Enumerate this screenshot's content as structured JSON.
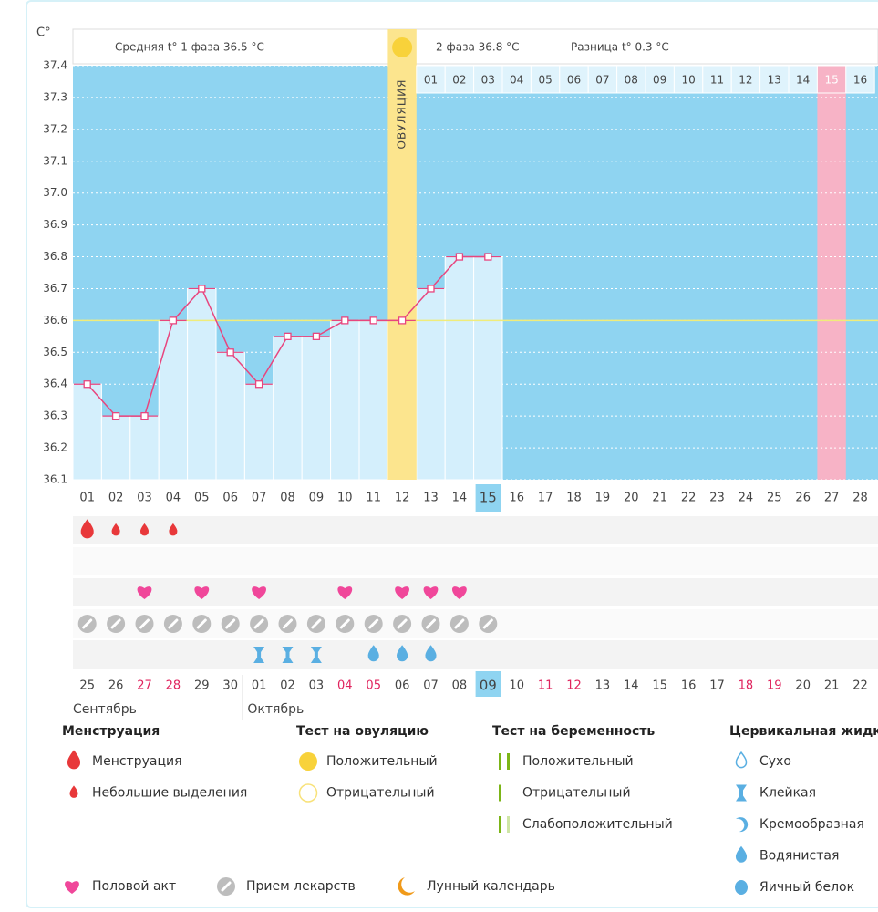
{
  "chart_data": {
    "type": "line",
    "y_unit": "C°",
    "header": {
      "phase1": "Средняя t° 1 фаза 36.5 °C",
      "phase2": "2 фаза 36.8 °C",
      "difference": "Разница t° 0.3 °C"
    },
    "ylim": [
      36.1,
      37.4
    ],
    "yticks": [
      36.1,
      36.2,
      36.3,
      36.4,
      36.5,
      36.6,
      36.7,
      36.8,
      36.9,
      {
        "value": 37,
        "label": "37.0"
      },
      37.1,
      37.2,
      37.3,
      37.4
    ],
    "grid": true,
    "categories": [
      "01",
      "02",
      "03",
      "04",
      "05",
      "06",
      "07",
      "08",
      "09",
      "10",
      "11",
      "12",
      "13",
      "14",
      "15",
      "16",
      "17",
      "18",
      "19",
      "20",
      "21",
      "22",
      "23",
      "24",
      "25",
      "26",
      "27",
      "28"
    ],
    "values": [
      36.4,
      36.3,
      36.3,
      36.6,
      36.7,
      36.5,
      36.4,
      36.55,
      36.55,
      36.6,
      36.6,
      36.6,
      36.7,
      36.8,
      36.8,
      null,
      null,
      null,
      null,
      null,
      null,
      null,
      null,
      null,
      null,
      null,
      null,
      null
    ],
    "line_color": "#e8457e",
    "bar_color": "#d4effc",
    "background_color": "#8fd4f1",
    "coverline": 36.6,
    "coverline_color": "#f0ec7a",
    "ovulation": {
      "day": "12",
      "label": "ОВУЛЯЦИЯ",
      "color": "#fce58e"
    },
    "phase2_days": [
      "01",
      "02",
      "03",
      "04",
      "05",
      "06",
      "07",
      "08",
      "09",
      "10",
      "11",
      "12",
      "13",
      "14",
      "15",
      "16"
    ],
    "phase2_highlight": "15",
    "phase2_highlight_color": "#f7b3c6",
    "today": "15",
    "dates": [
      {
        "label": "25"
      },
      {
        "label": "26"
      },
      {
        "label": "27",
        "red": true
      },
      {
        "label": "28",
        "red": true
      },
      {
        "label": "29"
      },
      {
        "label": "30"
      },
      {
        "label": "01"
      },
      {
        "label": "02"
      },
      {
        "label": "03"
      },
      {
        "label": "04",
        "red": true
      },
      {
        "label": "05",
        "red": true
      },
      {
        "label": "06"
      },
      {
        "label": "07"
      },
      {
        "label": "08"
      },
      {
        "label": "09"
      },
      {
        "label": "10"
      },
      {
        "label": "11",
        "red": true
      },
      {
        "label": "12",
        "red": true
      },
      {
        "label": "13"
      },
      {
        "label": "14"
      },
      {
        "label": "15"
      },
      {
        "label": "16"
      },
      {
        "label": "17"
      },
      {
        "label": "18",
        "red": true
      },
      {
        "label": "19",
        "red": true
      },
      {
        "label": "20"
      },
      {
        "label": "21"
      },
      {
        "label": "22"
      }
    ],
    "months": [
      "Сентябрь",
      "Октябрь"
    ],
    "markers": {
      "menstruation": [
        "heavy",
        "light",
        "light",
        "light",
        null,
        null,
        null,
        null,
        null,
        null,
        null,
        null,
        null,
        null,
        null,
        null,
        null,
        null,
        null,
        null,
        null,
        null,
        null,
        null,
        null,
        null,
        null,
        null
      ],
      "intercourse": [
        null,
        null,
        "heart",
        null,
        "heart",
        null,
        "heart",
        null,
        null,
        "heart",
        null,
        "heart",
        "heart",
        "heart",
        null,
        null,
        null,
        null,
        null,
        null,
        null,
        null,
        null,
        null,
        null,
        null,
        null,
        null
      ],
      "medication": [
        "pill",
        "pill",
        "pill",
        "pill",
        "pill",
        "pill",
        "pill",
        "pill",
        "pill",
        "pill",
        "pill",
        "pill",
        "pill",
        "pill",
        "pill",
        null,
        null,
        null,
        null,
        null,
        null,
        null,
        null,
        null,
        null,
        null,
        null,
        null
      ],
      "cervical": [
        null,
        null,
        null,
        null,
        null,
        null,
        "sticky",
        "sticky",
        "sticky",
        null,
        "watery",
        "watery",
        "watery",
        null,
        null,
        null,
        null,
        null,
        null,
        null,
        null,
        null,
        null,
        null,
        null,
        null,
        null,
        null
      ]
    },
    "legend": {
      "groups": [
        {
          "title": "Менструация",
          "items": [
            {
              "label": "Менструация",
              "icon": "heavy"
            },
            {
              "label": "Небольшие выделения",
              "icon": "light"
            }
          ]
        },
        {
          "title": "Тест на овуляцию",
          "items": [
            {
              "label": "Положительный",
              "icon": "ov-pos"
            },
            {
              "label": "Отрицательный",
              "icon": "ov-neg"
            }
          ]
        },
        {
          "title": "Тест на беременность",
          "items": [
            {
              "label": "Положительный",
              "icon": "pr-pos"
            },
            {
              "label": "Отрицательный",
              "icon": "pr-neg"
            },
            {
              "label": "Слабоположительный",
              "icon": "pr-weak"
            }
          ]
        },
        {
          "title": "Цервикальная жидкость",
          "items": [
            {
              "label": "Сухо",
              "icon": "dry"
            },
            {
              "label": "Клейкая",
              "icon": "sticky"
            },
            {
              "label": "Кремообразная",
              "icon": "creamy"
            },
            {
              "label": "Водянистая",
              "icon": "watery"
            },
            {
              "label": "Яичный белок",
              "icon": "egg"
            }
          ]
        }
      ],
      "footer": [
        {
          "label": "Половой акт",
          "icon": "heart"
        },
        {
          "label": "Прием лекарств",
          "icon": "pill"
        },
        {
          "label": "Лунный календарь",
          "icon": "moon"
        }
      ]
    }
  }
}
